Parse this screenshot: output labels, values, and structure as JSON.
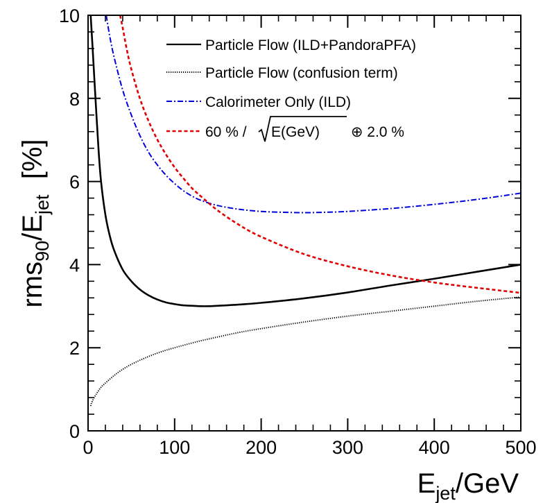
{
  "chart_data": {
    "type": "line",
    "xlabel": {
      "main": "E",
      "sub": "jet",
      "rest": "/GeV"
    },
    "ylabel": {
      "main": "rms",
      "sub1": "90",
      "mid": "/E",
      "sub2": "jet",
      "rest": "  [%]"
    },
    "xlim": [
      0,
      500
    ],
    "ylim": [
      0,
      10
    ],
    "x_ticks": [
      "0",
      "100",
      "200",
      "300",
      "400",
      "500"
    ],
    "y_ticks": [
      "0",
      "2",
      "4",
      "6",
      "8",
      "10"
    ],
    "grid": false,
    "legend_position": "top-right",
    "series": [
      {
        "name": "Particle Flow (ILD+PandoraPFA)",
        "color": "#000000",
        "style": "solid",
        "x": [
          3,
          5,
          8,
          12,
          15,
          20,
          25,
          30,
          40,
          50,
          60,
          70,
          80,
          90,
          100,
          110,
          120,
          130,
          140,
          150,
          175,
          200,
          250,
          300,
          350,
          400,
          450,
          500
        ],
        "y": [
          10.0,
          9.3,
          8.2,
          6.8,
          6.0,
          5.2,
          4.7,
          4.35,
          3.88,
          3.6,
          3.4,
          3.26,
          3.16,
          3.09,
          3.05,
          3.02,
          3.01,
          3.0,
          3.0,
          3.01,
          3.04,
          3.08,
          3.19,
          3.33,
          3.5,
          3.66,
          3.83,
          4.0
        ]
      },
      {
        "name": "Particle Flow (confusion term)",
        "color": "#000000",
        "style": "dotted",
        "x": [
          3,
          5,
          10,
          15,
          20,
          30,
          40,
          50,
          60,
          70,
          80,
          90,
          100,
          125,
          150,
          175,
          200,
          250,
          300,
          350,
          400,
          450,
          500
        ],
        "y": [
          0.6,
          0.72,
          0.9,
          1.05,
          1.15,
          1.33,
          1.48,
          1.6,
          1.7,
          1.79,
          1.87,
          1.94,
          2.0,
          2.14,
          2.26,
          2.37,
          2.46,
          2.62,
          2.76,
          2.88,
          3.0,
          3.12,
          3.22
        ]
      },
      {
        "name": "Calorimeter Only (ILD)",
        "color": "#0000e0",
        "style": "dashdot",
        "x": [
          21,
          25,
          30,
          40,
          50,
          60,
          70,
          80,
          90,
          100,
          110,
          120,
          130,
          150,
          175,
          200,
          225,
          250,
          275,
          300,
          350,
          400,
          450,
          500
        ],
        "y": [
          10.0,
          9.5,
          9.0,
          8.2,
          7.6,
          7.1,
          6.7,
          6.4,
          6.15,
          5.95,
          5.78,
          5.65,
          5.55,
          5.42,
          5.33,
          5.28,
          5.26,
          5.25,
          5.26,
          5.28,
          5.35,
          5.45,
          5.57,
          5.72
        ]
      },
      {
        "name_parts": {
          "pre": "60 % /",
          "radicand": "E(GeV)",
          "post": " ⊕ 2.0 %"
        },
        "color": "#e00000",
        "style": "dashed",
        "x": [
          37,
          40,
          45,
          50,
          60,
          70,
          80,
          90,
          100,
          110,
          120,
          130,
          150,
          175,
          200,
          250,
          300,
          350,
          400,
          450,
          500
        ],
        "y": [
          10.0,
          9.7,
          9.15,
          8.7,
          7.99,
          7.45,
          7.01,
          6.65,
          6.34,
          6.08,
          5.84,
          5.65,
          5.3,
          4.95,
          4.67,
          4.25,
          3.96,
          3.74,
          3.57,
          3.44,
          3.32
        ]
      }
    ]
  }
}
